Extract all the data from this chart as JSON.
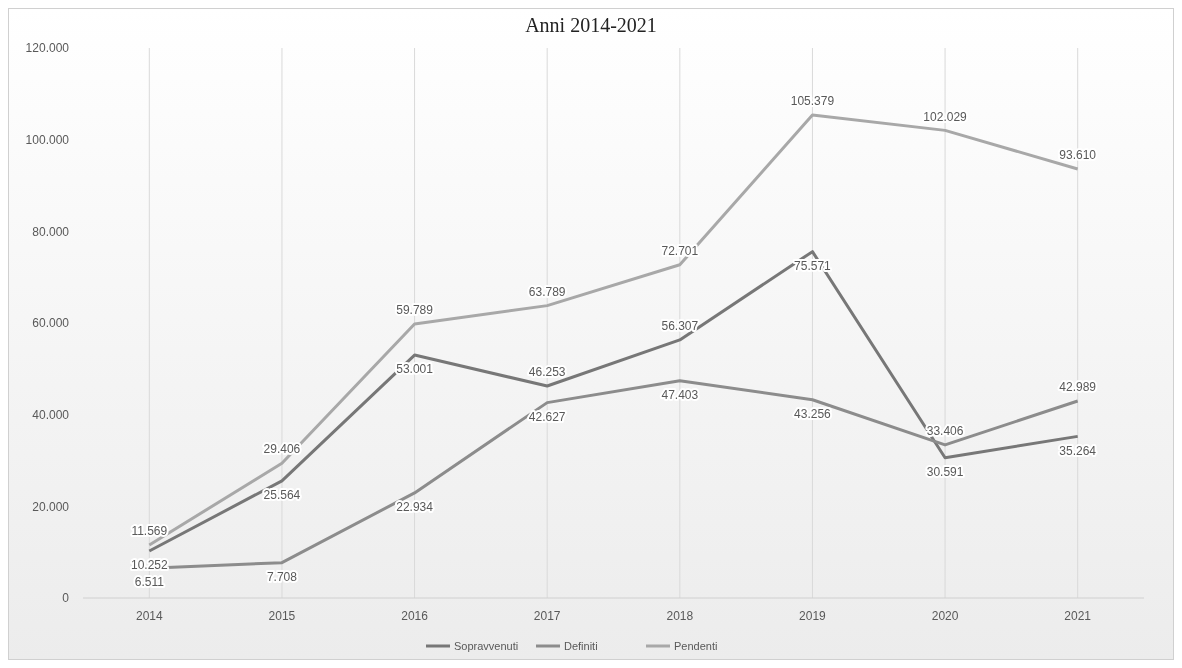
{
  "chart_data": {
    "type": "line",
    "title": "Anni 2014-2021",
    "categories": [
      "2014",
      "2015",
      "2016",
      "2017",
      "2018",
      "2019",
      "2020",
      "2021"
    ],
    "series": [
      {
        "name": "Sopravvenuti",
        "color": "#777777",
        "values": [
          10252,
          25564,
          53001,
          46253,
          56307,
          75571,
          30591,
          35264
        ],
        "value_labels": [
          "10.252",
          "25.564",
          "53.001",
          "46.253",
          "56.307",
          "75.571",
          "30.591",
          "35.264"
        ]
      },
      {
        "name": "Definiti",
        "color": "#8c8c8c",
        "values": [
          6511,
          7708,
          22934,
          42627,
          47403,
          43256,
          33406,
          42989
        ],
        "value_labels": [
          "6.511",
          "7.708",
          "22.934",
          "42.627",
          "47.403",
          "43.256",
          "33.406",
          "42.989"
        ]
      },
      {
        "name": "Pendenti",
        "color": "#a8a8a8",
        "values": [
          11569,
          29406,
          59789,
          63789,
          72701,
          105379,
          102029,
          93610
        ],
        "value_labels": [
          "11.569",
          "29.406",
          "59.789",
          "63.789",
          "72.701",
          "105.379",
          "102.029",
          "93.610"
        ]
      }
    ],
    "ylim": [
      0,
      120000
    ],
    "yticks": [
      {
        "value": 0,
        "label": "0"
      },
      {
        "value": 20000,
        "label": "20.000"
      },
      {
        "value": 40000,
        "label": "40.000"
      },
      {
        "value": 60000,
        "label": "60.000"
      },
      {
        "value": 80000,
        "label": "80.000"
      },
      {
        "value": 100000,
        "label": "100.000"
      },
      {
        "value": 120000,
        "label": "120.000"
      }
    ],
    "grid": "x",
    "legend": "bottom",
    "marker": "none",
    "line_style": "solid"
  }
}
